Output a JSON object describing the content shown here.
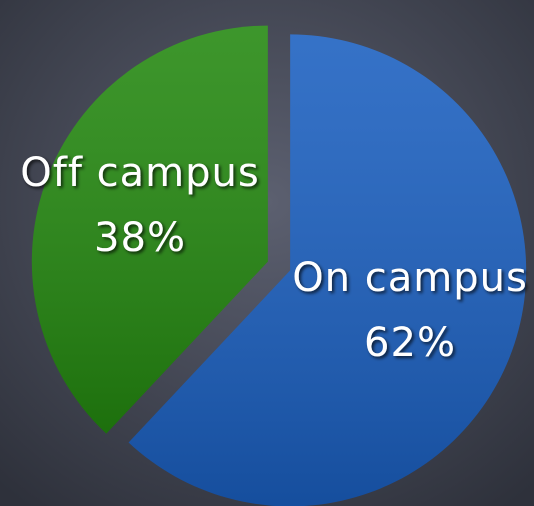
{
  "chart_data": {
    "type": "pie",
    "categories": [
      "On campus",
      "Off campus"
    ],
    "values": [
      62,
      38
    ],
    "value_labels": [
      "62%",
      "38%"
    ],
    "colors": [
      "#1a5fc0",
      "#23880f"
    ]
  }
}
